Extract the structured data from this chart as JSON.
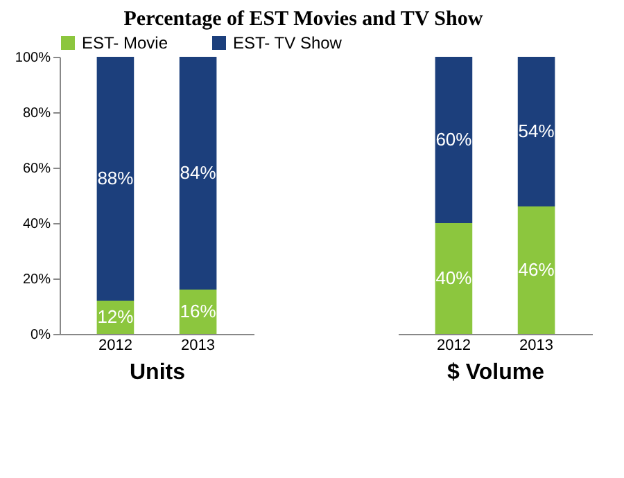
{
  "chart_data": [
    {
      "type": "bar",
      "title": "Percentage of EST Movies and TV Show",
      "stacked": true,
      "categories": [
        "2012",
        "2013"
      ],
      "xlabel": "Units",
      "legend": "top",
      "ylim": [
        0,
        100
      ],
      "yticks": [
        {
          "value": 0,
          "label": "0%"
        },
        {
          "value": 20,
          "label": "20%"
        },
        {
          "value": 40,
          "label": "40%"
        },
        {
          "value": 60,
          "label": "60%"
        },
        {
          "value": 80,
          "label": "80%"
        },
        {
          "value": 100,
          "label": "100%"
        }
      ],
      "series": [
        {
          "name": "EST- Movie",
          "color": "#8cc63e",
          "values": [
            12,
            16
          ],
          "value_labels": [
            "12%",
            "16%"
          ]
        },
        {
          "name": "EST- TV Show",
          "color": "#1c3f7c",
          "values": [
            88,
            84
          ],
          "value_labels": [
            "88%",
            "84%"
          ]
        }
      ]
    },
    {
      "type": "bar",
      "stacked": true,
      "categories": [
        "2012",
        "2013"
      ],
      "xlabel": "$ Volume",
      "ylim": [
        0,
        100
      ],
      "tick_labels": "x",
      "series": [
        {
          "color": "#8cc63e",
          "values": [
            40,
            46
          ],
          "value_labels": [
            "40%",
            "46%"
          ]
        },
        {
          "color": "#1c3f7c",
          "values": [
            60,
            54
          ],
          "value_labels": [
            "60%",
            "54%"
          ]
        }
      ]
    }
  ]
}
